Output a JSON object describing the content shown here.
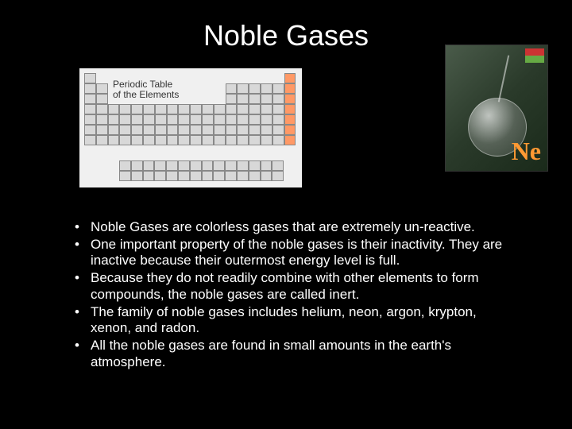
{
  "title": "Noble Gases",
  "periodic_table": {
    "label_line1": "Periodic Table",
    "label_line2": "of the Elements",
    "noble_column_color": "#ff9966",
    "cell_color": "#d8d8d8",
    "border_color": "#888888",
    "background": "#f0f0f0"
  },
  "neon_image": {
    "symbol": "Ne",
    "symbol_color": "#ff9933",
    "background_gradient": [
      "#4a5b4a",
      "#2a3a2a",
      "#1a2a1a"
    ],
    "badge_colors": [
      "#cc3333",
      "#66aa44"
    ]
  },
  "bullets": [
    "Noble Gases are colorless gases that are extremely un-reactive.",
    "One important property of the noble gases is their inactivity. They are inactive because their outermost energy level is full.",
    "Because they do not readily combine with other elements to form compounds, the noble gases are called inert.",
    "The family of noble gases includes helium, neon, argon, krypton, xenon, and radon.",
    "All the noble gases are found in small amounts in the earth's atmosphere."
  ],
  "colors": {
    "background": "#000000",
    "text": "#ffffff"
  }
}
